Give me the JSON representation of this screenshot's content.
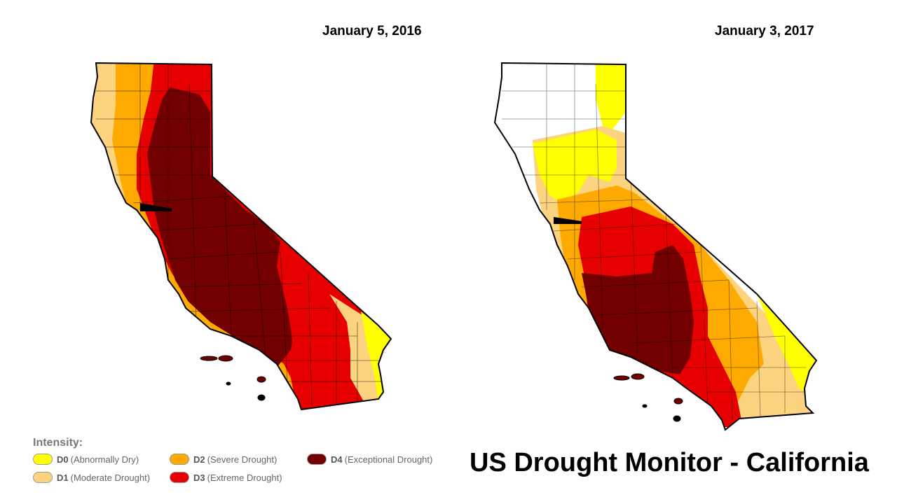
{
  "maps": [
    {
      "date": "January 5, 2016"
    },
    {
      "date": "January 3, 2017"
    }
  ],
  "legend": {
    "title": "Intensity:",
    "items": [
      {
        "code": "D0",
        "label": "(Abnormally Dry)",
        "color": "#ffff00"
      },
      {
        "code": "D1",
        "label": "(Moderate Drought)",
        "color": "#fcd37f"
      },
      {
        "code": "D2",
        "label": "(Severe Drought)",
        "color": "#ffaa00"
      },
      {
        "code": "D3",
        "label": "(Extreme Drought)",
        "color": "#e60000"
      },
      {
        "code": "D4",
        "label": "(Exceptional Drought)",
        "color": "#730000"
      }
    ]
  },
  "title": "US Drought Monitor - California"
}
